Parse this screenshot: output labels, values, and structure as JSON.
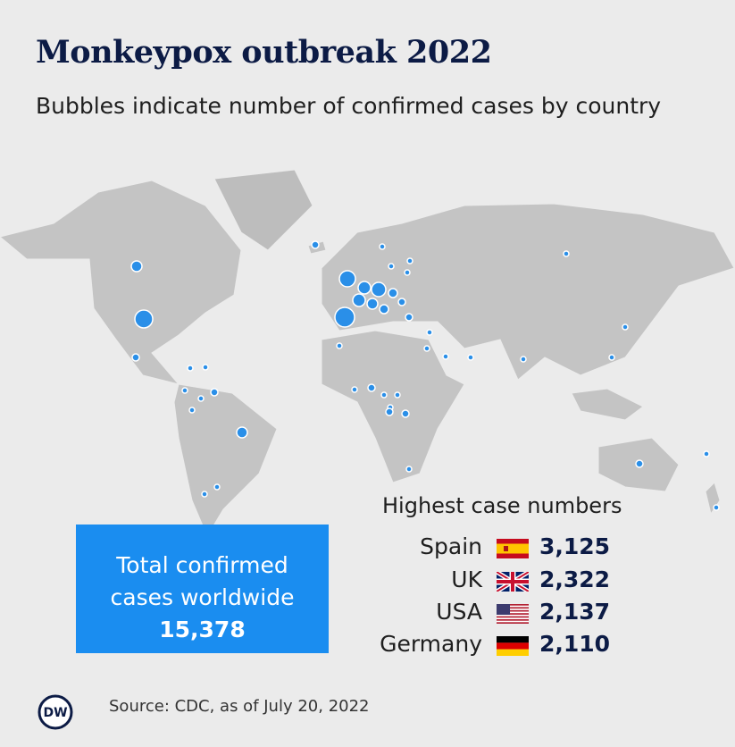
{
  "header": {
    "title": "Monkeypox outbreak 2022",
    "subtitle": "Bubbles indicate number of confirmed cases by country"
  },
  "total": {
    "lines": [
      "Total confirmed",
      "cases worldwide"
    ],
    "value": "15,378"
  },
  "highest": {
    "title": "Highest case numbers",
    "rows": [
      {
        "country": "Spain",
        "cases": "3,125"
      },
      {
        "country": "UK",
        "cases": "2,322"
      },
      {
        "country": "USA",
        "cases": "2,137"
      },
      {
        "country": "Germany",
        "cases": "2,110"
      }
    ]
  },
  "source": "Source: CDC, as of July 20, 2022",
  "logo": "DW"
}
